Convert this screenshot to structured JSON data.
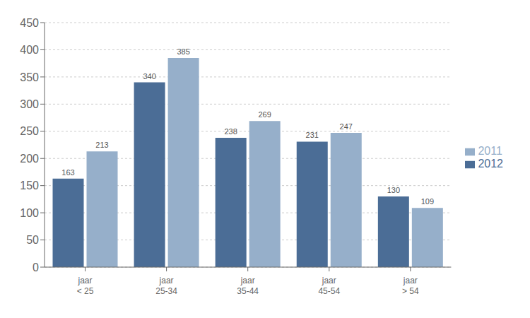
{
  "chart_data": {
    "type": "bar",
    "categories": [
      "jaar\n< 25",
      "jaar\n25-34",
      "jaar\n35-44",
      "jaar\n45-54",
      "jaar\n> 54"
    ],
    "series": [
      {
        "name": "2012",
        "color": "#4B6D96",
        "values": [
          163,
          340,
          238,
          231,
          130
        ]
      },
      {
        "name": "2011",
        "color": "#96AFCA",
        "values": [
          213,
          385,
          269,
          247,
          109
        ]
      }
    ],
    "ylim": [
      0,
      450
    ],
    "yticks": [
      0,
      50,
      100,
      150,
      200,
      250,
      300,
      350,
      400,
      450
    ],
    "grid": true,
    "legend": "right",
    "data_labels": true
  }
}
